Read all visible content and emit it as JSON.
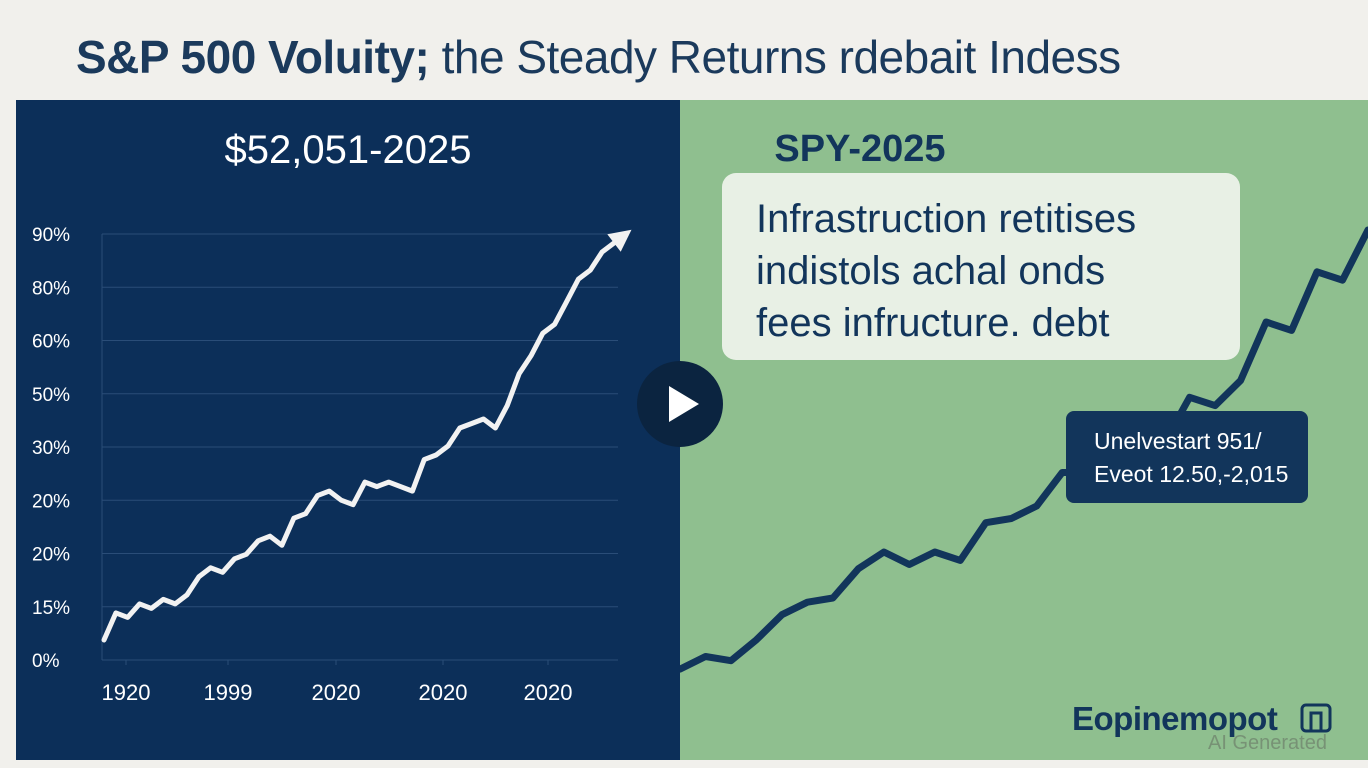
{
  "headline": {
    "bold": "S&P 500 Voluity;",
    "regular": " the Steady Returns rdebait Indess"
  },
  "left_panel": {
    "title": "$52,051-2025"
  },
  "right_panel": {
    "title": "SPY-2025",
    "info_lines": [
      "Infrastruction retitises",
      "indistols achal onds",
      "fees infructure. debt"
    ],
    "callout_lines": [
      "Unelvestart 951/",
      "Eveot 12.50,-2,015"
    ]
  },
  "brand": "Eopinemopot",
  "watermark": "AI Generated",
  "play_button_label": "play",
  "icons": {
    "play": "play-icon",
    "arrow": "arrow-up-icon",
    "brand": "bookmark-icon"
  },
  "colors": {
    "left_bg": "#0c2f59",
    "right_bg": "#8fbf8f",
    "left_line": "#f2f2f2",
    "right_line": "#12355b",
    "title_dark": "#1b3a5c"
  },
  "chart_data": [
    {
      "type": "line",
      "title": "$52,051-2025",
      "y_tick_labels": [
        "0%",
        "15%",
        "20%",
        "20%",
        "30%",
        "50%",
        "60%",
        "80%",
        "90%"
      ],
      "x_tick_labels": [
        "1920",
        "1999",
        "2020",
        "2020",
        "2020"
      ],
      "grid": true,
      "series": [
        {
          "values": [
            0,
            6,
            5,
            8,
            7,
            9,
            8,
            10,
            14,
            16,
            15,
            18,
            19,
            22,
            23,
            21,
            27,
            28,
            32,
            33,
            31,
            30,
            35,
            34,
            35,
            34,
            33,
            40,
            41,
            43,
            47,
            48,
            49,
            47,
            52,
            59,
            63,
            68,
            70,
            75,
            80,
            82,
            86,
            88
          ]
        }
      ]
    },
    {
      "type": "line",
      "title": "SPY-2025",
      "series": [
        {
          "values": [
            5,
            8,
            7,
            12,
            18,
            21,
            22,
            29,
            33,
            30,
            33,
            31,
            40,
            41,
            44,
            52,
            52,
            56,
            62,
            59,
            70,
            68,
            74,
            88,
            86,
            100,
            98,
            110
          ]
        }
      ]
    }
  ]
}
